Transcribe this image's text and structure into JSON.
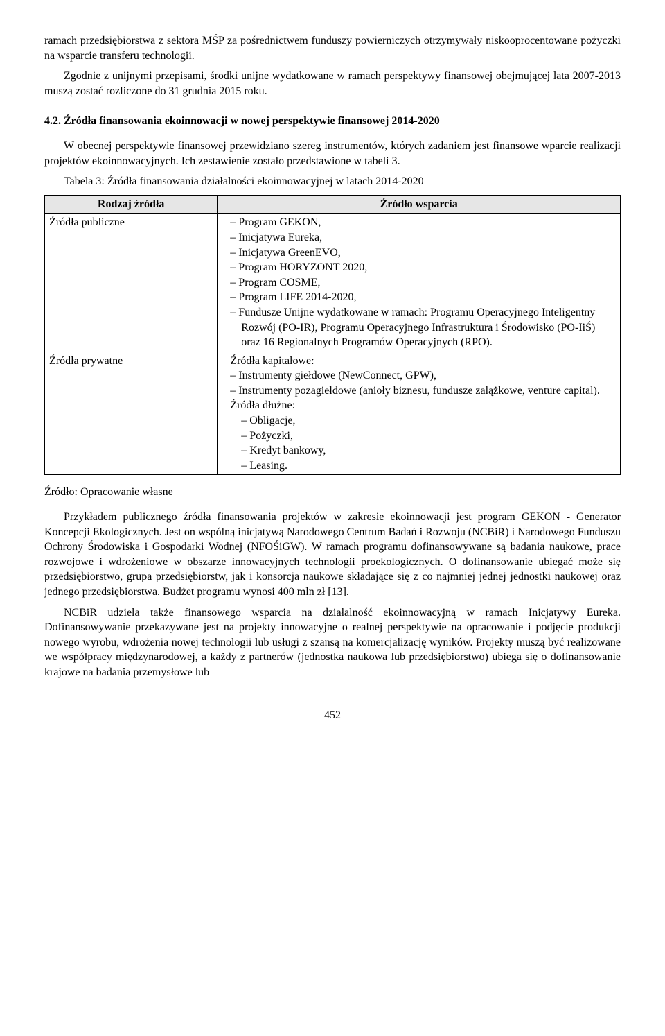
{
  "para_top": "ramach przedsiębiorstwa z sektora MŚP za pośrednictwem funduszy powierniczych otrzymywały niskooprocentowane pożyczki na wsparcie transferu technologii.",
  "para_top2": "Zgodnie z unijnymi przepisami, środki unijne wydatkowane w ramach perspektywy finansowej obejmującej lata 2007-2013 muszą zostać rozliczone do 31 grudnia 2015 roku.",
  "heading": "4.2. Źródła finansowania ekoinnowacji w nowej perspektywie finansowej 2014-2020",
  "para_mid": "W obecnej perspektywie finansowej przewidziano szereg instrumentów, których zadaniem jest finansowe wparcie realizacji projektów ekoinnowacyjnych. Ich zestawienie zostało przedstawione w tabeli 3.",
  "table_caption": "Tabela 3: Źródła finansowania działalności ekoinnowacyjnej w latach 2014-2020",
  "table": {
    "col1": "Rodzaj źródła",
    "col2": "Źródło wsparcia",
    "row1_label": "Źródła publiczne",
    "row1_items": [
      "Program GEKON,",
      "Inicjatywa Eureka,",
      "Inicjatywa GreenEVO,",
      "Program HORYZONT 2020,",
      "Program COSME,",
      "Program LIFE 2014-2020,",
      "Fundusze Unijne wydatkowane w ramach: Programu Operacyjnego Inteligentny Rozwój (PO-IR), Programu Operacyjnego Infrastruktura i Środowisko (PO-IiŚ) oraz 16 Regionalnych Programów Operacyjnych (RPO)."
    ],
    "row2_label": "Źródła prywatne",
    "row2_sub1": "Źródła kapitałowe:",
    "row2_items1": [
      "Instrumenty giełdowe (NewConnect, GPW),",
      "Instrumenty pozagiełdowe (anioły biznesu, fundusze zalążkowe, venture capital)."
    ],
    "row2_sub2": "Źródła dłużne:",
    "row2_items2": [
      "Obligacje,",
      "Pożyczki,",
      "Kredyt bankowy,",
      "Leasing."
    ]
  },
  "source": "Źródło: Opracowanie własne",
  "para_bottom1": "Przykładem publicznego źródła finansowania projektów w zakresie ekoinnowacji jest program GEKON - Generator Koncepcji Ekologicznych. Jest on wspólną inicjatywą Narodowego Centrum Badań i Rozwoju (NCBiR) i Narodowego Funduszu Ochrony Środowiska i Gospodarki Wodnej (NFOŚiGW). W ramach programu dofinansowywane są badania naukowe, prace rozwojowe i wdrożeniowe w obszarze innowacyjnych technologii proekologicznych. O dofinansowanie ubiegać może się przedsiębiorstwo, grupa przedsiębiorstw, jak i  konsorcja naukowe składające się z co najmniej jednej jednostki naukowej oraz jednego przedsiębiorstwa. Budżet programu wynosi 400 mln zł [13].",
  "para_bottom2": "NCBiR udziela także finansowego wsparcia na działalność ekoinnowacyjną w ramach Inicjatywy Eureka. Dofinansowywanie przekazywane jest na projekty innowacyjne o realnej perspektywie na opracowanie i podjęcie produkcji nowego wyrobu, wdrożenia nowej technologii lub usługi z szansą na komercjalizację wyników. Projekty muszą być realizowane we współpracy międzynarodowej, a każdy z partnerów (jednostka naukowa lub przedsiębiorstwo) ubiega się o dofinansowanie krajowe na badania przemysłowe lub",
  "page_number": "452"
}
